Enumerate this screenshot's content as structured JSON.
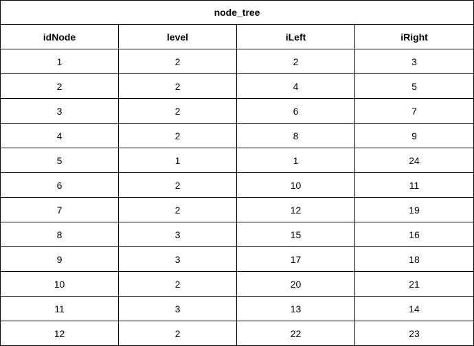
{
  "table": {
    "title": "node_tree",
    "columns": [
      "idNode",
      "level",
      "iLeft",
      "iRight"
    ],
    "rows": [
      [
        "1",
        "2",
        "2",
        "3"
      ],
      [
        "2",
        "2",
        "4",
        "5"
      ],
      [
        "3",
        "2",
        "6",
        "7"
      ],
      [
        "4",
        "2",
        "8",
        "9"
      ],
      [
        "5",
        "1",
        "1",
        "24"
      ],
      [
        "6",
        "2",
        "10",
        "11"
      ],
      [
        "7",
        "2",
        "12",
        "19"
      ],
      [
        "8",
        "3",
        "15",
        "16"
      ],
      [
        "9",
        "3",
        "17",
        "18"
      ],
      [
        "10",
        "2",
        "20",
        "21"
      ],
      [
        "11",
        "3",
        "13",
        "14"
      ],
      [
        "12",
        "2",
        "22",
        "23"
      ]
    ]
  }
}
